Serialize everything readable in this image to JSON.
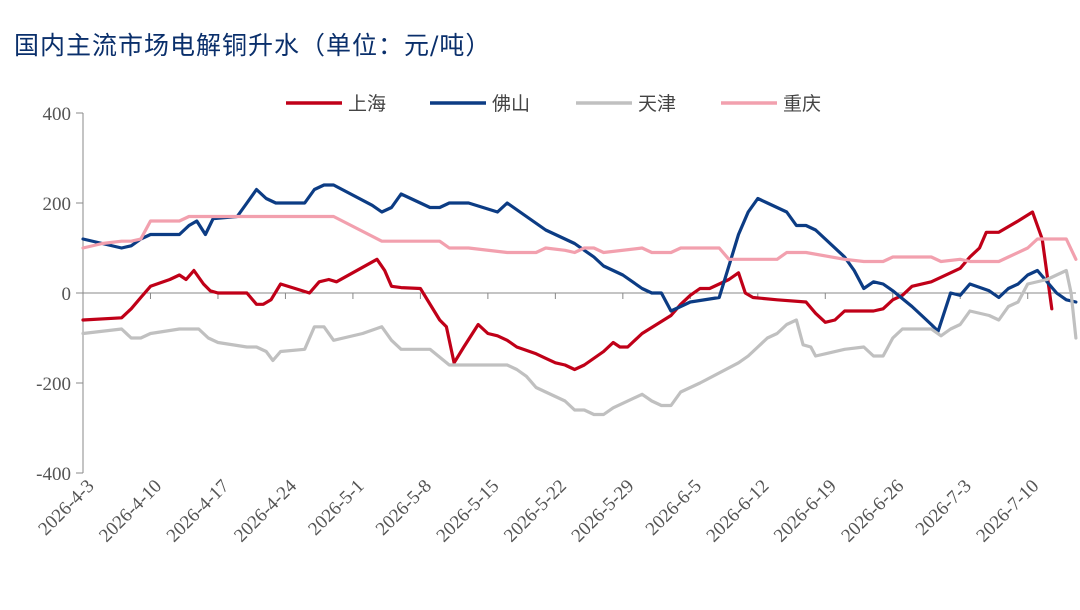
{
  "title": "国内主流市场电解铜升水（单位：元/吨）",
  "chart_data": {
    "type": "line",
    "title": "国内主流市场电解铜升水（单位：元/吨）",
    "ylim": [
      -400,
      400
    ],
    "yticks": [
      400,
      200,
      0,
      -200,
      -400
    ],
    "xlim": [
      0,
      101
    ],
    "x_tick_labels": [
      {
        "x": 0,
        "label": "2026-4-3"
      },
      {
        "x": 7,
        "label": "2026-4-10"
      },
      {
        "x": 14,
        "label": "2026-4-17"
      },
      {
        "x": 21,
        "label": "2026-4-24"
      },
      {
        "x": 28,
        "label": "2026-5-1"
      },
      {
        "x": 35,
        "label": "2026-5-8"
      },
      {
        "x": 42,
        "label": "2026-5-15"
      },
      {
        "x": 49,
        "label": "2026-5-22"
      },
      {
        "x": 56,
        "label": "2026-5-29"
      },
      {
        "x": 63,
        "label": "2026-6-5"
      },
      {
        "x": 70,
        "label": "2026-6-12"
      },
      {
        "x": 77,
        "label": "2026-6-19"
      },
      {
        "x": 84,
        "label": "2026-6-26"
      },
      {
        "x": 91,
        "label": "2026-7-3"
      },
      {
        "x": 98,
        "label": "2026-7-10"
      }
    ],
    "grid": false,
    "legend_position": "top",
    "series": [
      {
        "name": "上海",
        "color": "#c00018",
        "points": [
          [
            0,
            -60
          ],
          [
            4,
            -55
          ],
          [
            5,
            -35
          ],
          [
            6,
            -10
          ],
          [
            7,
            15
          ],
          [
            9,
            30
          ],
          [
            10,
            40
          ],
          [
            10.7,
            30
          ],
          [
            11.5,
            50
          ],
          [
            12.5,
            20
          ],
          [
            13.2,
            5
          ],
          [
            14,
            0
          ],
          [
            17,
            0
          ],
          [
            18,
            -25
          ],
          [
            18.7,
            -25
          ],
          [
            19.5,
            -15
          ],
          [
            20.5,
            20
          ],
          [
            22,
            10
          ],
          [
            23.5,
            0
          ],
          [
            24.5,
            25
          ],
          [
            25.5,
            30
          ],
          [
            26.3,
            25
          ],
          [
            30.5,
            75
          ],
          [
            31.3,
            50
          ],
          [
            32,
            15
          ],
          [
            33,
            12
          ],
          [
            35,
            10
          ],
          [
            37,
            -60
          ],
          [
            37.7,
            -75
          ],
          [
            38.5,
            -155
          ],
          [
            39.5,
            -120
          ],
          [
            41,
            -70
          ],
          [
            42,
            -90
          ],
          [
            43,
            -95
          ],
          [
            44,
            -105
          ],
          [
            45,
            -120
          ],
          [
            47,
            -135
          ],
          [
            48,
            -145
          ],
          [
            49,
            -155
          ],
          [
            50,
            -160
          ],
          [
            51,
            -170
          ],
          [
            52,
            -160
          ],
          [
            54,
            -130
          ],
          [
            55,
            -110
          ],
          [
            55.7,
            -120
          ],
          [
            56.5,
            -120
          ],
          [
            58,
            -90
          ],
          [
            61,
            -50
          ],
          [
            62,
            -25
          ],
          [
            63,
            -5
          ],
          [
            64,
            10
          ],
          [
            65,
            10
          ],
          [
            67,
            30
          ],
          [
            68,
            45
          ],
          [
            68.7,
            0
          ],
          [
            69.5,
            -10
          ],
          [
            72,
            -15
          ],
          [
            75,
            -20
          ],
          [
            76,
            -45
          ],
          [
            77,
            -65
          ],
          [
            78,
            -60
          ],
          [
            79,
            -40
          ],
          [
            82,
            -40
          ],
          [
            83,
            -35
          ],
          [
            84,
            -15
          ],
          [
            85,
            -5
          ],
          [
            86,
            15
          ],
          [
            88,
            25
          ],
          [
            90,
            45
          ],
          [
            91,
            55
          ],
          [
            92,
            80
          ],
          [
            93,
            100
          ],
          [
            93.7,
            135
          ],
          [
            95,
            135
          ],
          [
            97,
            160
          ],
          [
            98.5,
            180
          ],
          [
            99.5,
            120
          ],
          [
            100.5,
            -35
          ]
        ]
      },
      {
        "name": "佛山",
        "color": "#0c3c84",
        "points": [
          [
            0,
            120
          ],
          [
            2,
            110
          ],
          [
            4,
            100
          ],
          [
            5,
            105
          ],
          [
            6,
            120
          ],
          [
            7,
            130
          ],
          [
            10,
            130
          ],
          [
            11,
            150
          ],
          [
            11.8,
            160
          ],
          [
            12.7,
            130
          ],
          [
            13.5,
            165
          ],
          [
            16,
            170
          ],
          [
            17,
            200
          ],
          [
            18,
            230
          ],
          [
            19,
            210
          ],
          [
            20,
            200
          ],
          [
            23,
            200
          ],
          [
            24,
            230
          ],
          [
            25,
            240
          ],
          [
            26,
            240
          ],
          [
            30,
            195
          ],
          [
            31,
            180
          ],
          [
            32,
            190
          ],
          [
            33,
            220
          ],
          [
            35,
            200
          ],
          [
            36,
            190
          ],
          [
            37,
            190
          ],
          [
            38,
            200
          ],
          [
            40,
            200
          ],
          [
            43,
            180
          ],
          [
            44,
            200
          ],
          [
            48,
            140
          ],
          [
            51,
            110
          ],
          [
            53,
            80
          ],
          [
            54,
            60
          ],
          [
            56,
            40
          ],
          [
            58,
            10
          ],
          [
            59,
            0
          ],
          [
            60,
            0
          ],
          [
            61,
            -40
          ],
          [
            62,
            -30
          ],
          [
            63,
            -20
          ],
          [
            66,
            -10
          ],
          [
            67,
            60
          ],
          [
            68,
            130
          ],
          [
            69,
            180
          ],
          [
            70,
            210
          ],
          [
            71,
            200
          ],
          [
            73,
            180
          ],
          [
            74,
            150
          ],
          [
            75,
            150
          ],
          [
            76,
            140
          ],
          [
            79,
            80
          ],
          [
            80,
            50
          ],
          [
            81,
            10
          ],
          [
            82,
            25
          ],
          [
            83,
            20
          ],
          [
            84,
            5
          ],
          [
            86,
            -30
          ],
          [
            87,
            -50
          ],
          [
            88,
            -70
          ],
          [
            88.7,
            -85
          ],
          [
            90,
            0
          ],
          [
            91,
            -5
          ],
          [
            92,
            20
          ],
          [
            94,
            5
          ],
          [
            95,
            -10
          ],
          [
            96,
            10
          ],
          [
            97,
            20
          ],
          [
            98,
            40
          ],
          [
            99,
            50
          ],
          [
            101,
            0
          ],
          [
            102,
            -15
          ],
          [
            103,
            -20
          ]
        ]
      },
      {
        "name": "天津",
        "color": "#c0c0c0",
        "points": [
          [
            0,
            -90
          ],
          [
            4,
            -80
          ],
          [
            5,
            -100
          ],
          [
            6,
            -100
          ],
          [
            7,
            -90
          ],
          [
            10,
            -80
          ],
          [
            12,
            -80
          ],
          [
            13,
            -100
          ],
          [
            14,
            -110
          ],
          [
            17,
            -120
          ],
          [
            18,
            -120
          ],
          [
            19,
            -130
          ],
          [
            19.7,
            -150
          ],
          [
            20.5,
            -130
          ],
          [
            23,
            -125
          ],
          [
            24,
            -75
          ],
          [
            25,
            -75
          ],
          [
            26,
            -105
          ],
          [
            29,
            -90
          ],
          [
            31,
            -75
          ],
          [
            32,
            -105
          ],
          [
            33,
            -125
          ],
          [
            36,
            -125
          ],
          [
            38,
            -160
          ],
          [
            44,
            -160
          ],
          [
            45,
            -170
          ],
          [
            46,
            -185
          ],
          [
            47,
            -210
          ],
          [
            48,
            -220
          ],
          [
            50,
            -240
          ],
          [
            51,
            -260
          ],
          [
            52,
            -260
          ],
          [
            53,
            -270
          ],
          [
            54,
            -270
          ],
          [
            55,
            -255
          ],
          [
            58,
            -225
          ],
          [
            59,
            -240
          ],
          [
            60,
            -250
          ],
          [
            61,
            -250
          ],
          [
            62,
            -220
          ],
          [
            64,
            -200
          ],
          [
            68,
            -155
          ],
          [
            69,
            -140
          ],
          [
            70,
            -120
          ],
          [
            71,
            -100
          ],
          [
            72,
            -90
          ],
          [
            73,
            -70
          ],
          [
            74,
            -60
          ],
          [
            74.7,
            -115
          ],
          [
            75.5,
            -120
          ],
          [
            76,
            -140
          ],
          [
            77,
            -135
          ],
          [
            79,
            -125
          ],
          [
            81,
            -120
          ],
          [
            82,
            -140
          ],
          [
            83,
            -140
          ],
          [
            84,
            -100
          ],
          [
            85,
            -80
          ],
          [
            88,
            -80
          ],
          [
            89,
            -95
          ],
          [
            90,
            -80
          ],
          [
            91,
            -70
          ],
          [
            92,
            -40
          ],
          [
            94,
            -50
          ],
          [
            95,
            -60
          ],
          [
            96,
            -30
          ],
          [
            97,
            -20
          ],
          [
            98,
            20
          ],
          [
            100,
            30
          ],
          [
            101,
            40
          ],
          [
            102,
            50
          ],
          [
            102.5,
            0
          ],
          [
            103,
            -100
          ]
        ]
      },
      {
        "name": "重庆",
        "color": "#f2a0ae",
        "points": [
          [
            0,
            100
          ],
          [
            2,
            110
          ],
          [
            4,
            115
          ],
          [
            5,
            115
          ],
          [
            6,
            120
          ],
          [
            7,
            160
          ],
          [
            9,
            160
          ],
          [
            10,
            160
          ],
          [
            11,
            170
          ],
          [
            17,
            170
          ],
          [
            25,
            170
          ],
          [
            26,
            170
          ],
          [
            31,
            115
          ],
          [
            33,
            115
          ],
          [
            35,
            115
          ],
          [
            37,
            115
          ],
          [
            38,
            100
          ],
          [
            40,
            100
          ],
          [
            44,
            90
          ],
          [
            47,
            90
          ],
          [
            48,
            100
          ],
          [
            50,
            95
          ],
          [
            51,
            90
          ],
          [
            52,
            100
          ],
          [
            53,
            100
          ],
          [
            54,
            90
          ],
          [
            58,
            100
          ],
          [
            59,
            90
          ],
          [
            61,
            90
          ],
          [
            62,
            100
          ],
          [
            66,
            100
          ],
          [
            67,
            75
          ],
          [
            72,
            75
          ],
          [
            73,
            90
          ],
          [
            75,
            90
          ],
          [
            79,
            75
          ],
          [
            81,
            70
          ],
          [
            83,
            70
          ],
          [
            84,
            80
          ],
          [
            88,
            80
          ],
          [
            89,
            70
          ],
          [
            91,
            75
          ],
          [
            92,
            70
          ],
          [
            95,
            70
          ],
          [
            96,
            80
          ],
          [
            98,
            100
          ],
          [
            99,
            120
          ],
          [
            101,
            120
          ],
          [
            102,
            120
          ],
          [
            103,
            75
          ]
        ]
      }
    ]
  }
}
